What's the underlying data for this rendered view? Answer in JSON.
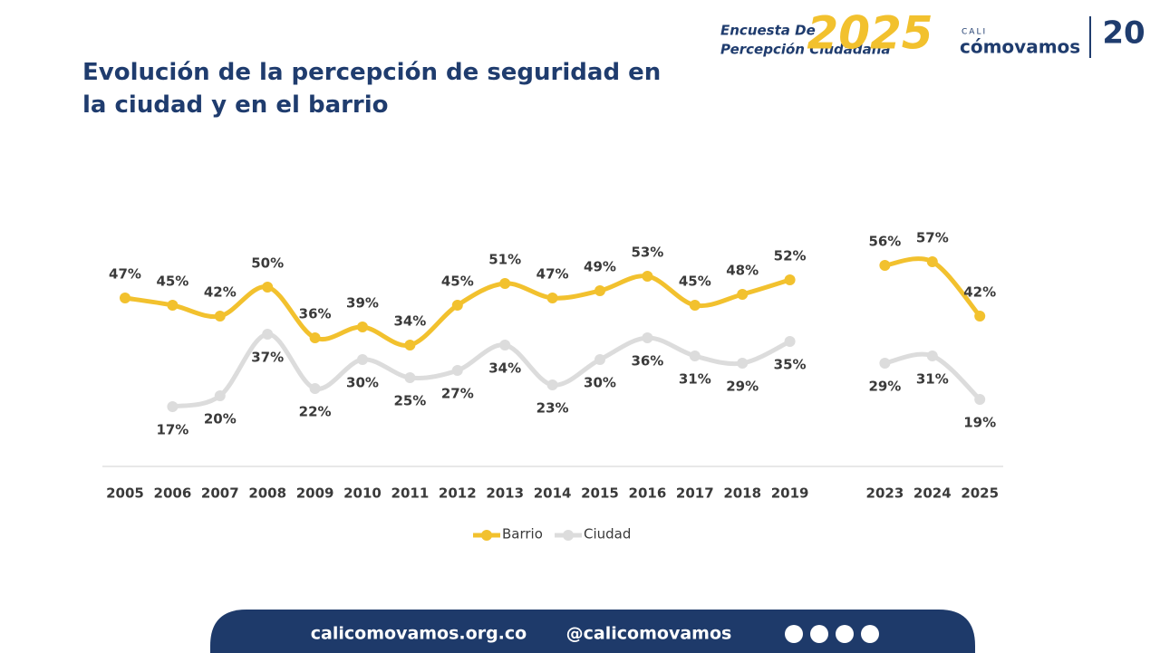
{
  "header": {
    "survey_line1": "Encuesta De",
    "survey_line2": "Percepción Ciudadana",
    "year": "2025",
    "brand_small": "CALI",
    "brand": "cómovamos",
    "anniversary": "20"
  },
  "chart_data": {
    "type": "line",
    "title": "Evolución de la percepción de seguridad en la ciudad y en el barrio",
    "categories": [
      "2005",
      "2006",
      "2007",
      "2008",
      "2009",
      "2010",
      "2011",
      "2012",
      "2013",
      "2014",
      "2015",
      "2016",
      "2017",
      "2018",
      "2019",
      null,
      "2023",
      "2024",
      "2025"
    ],
    "series": [
      {
        "name": "Barrio",
        "color": "#f2c12e",
        "values": [
          47,
          45,
          42,
          50,
          36,
          39,
          34,
          45,
          51,
          47,
          49,
          53,
          45,
          48,
          52,
          null,
          56,
          57,
          42
        ],
        "value_labels": [
          "47%",
          "45%",
          "42%",
          "50%",
          "36%",
          "39%",
          "34%",
          "45%",
          "51%",
          "47%",
          "49%",
          "53%",
          "45%",
          "48%",
          "52%",
          null,
          "56%",
          "57%",
          "42%"
        ]
      },
      {
        "name": "Ciudad",
        "color": "#dcdcdc",
        "values": [
          null,
          17,
          20,
          37,
          22,
          30,
          25,
          27,
          34,
          23,
          30,
          36,
          31,
          29,
          35,
          null,
          29,
          31,
          19
        ],
        "value_labels": [
          null,
          "17%",
          "20%",
          "37%",
          "22%",
          "30%",
          "25%",
          "27%",
          "34%",
          "23%",
          "30%",
          "36%",
          "31%",
          "29%",
          "35%",
          null,
          "29%",
          "31%",
          "19%"
        ]
      }
    ],
    "legend": "bottom"
  },
  "footer": {
    "website": "calicomovamos.org.co",
    "handle": "@calicomovamos"
  }
}
